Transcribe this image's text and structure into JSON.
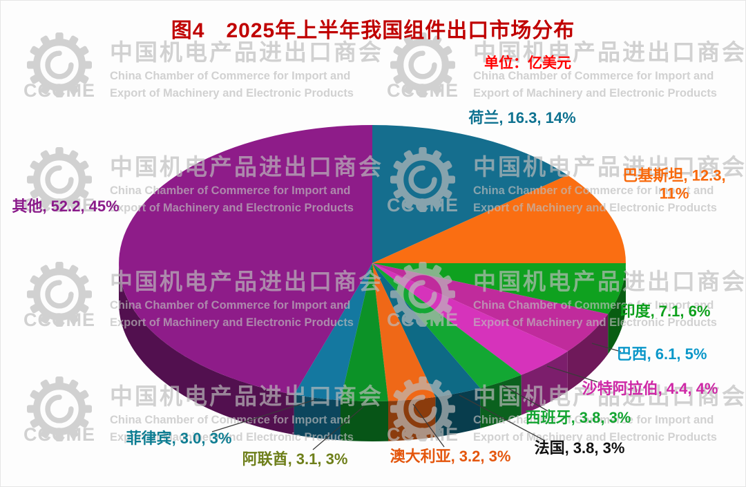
{
  "title": "图4　2025年上半年我国组件出口市场分布",
  "unit_label": "单位：亿美元",
  "watermark": {
    "logo_text": "CCCME",
    "cn": "中国机电产品进出口商会",
    "en_line1": "China Chamber of Commerce for Import and",
    "en_line2": "Export of Machinery and Electronic Products"
  },
  "chart_data": {
    "type": "pie",
    "style": "3d",
    "title": "2025年上半年我国组件出口市场分布",
    "unit": "亿美元",
    "start_angle_deg": -90,
    "direction": "clockwise",
    "label_format": "{name}, {value}, {percent}%",
    "series": [
      {
        "name": "荷兰",
        "value": 16.3,
        "value_text": "16.3",
        "percent": 14,
        "color": "#156e8e",
        "label_color": "#0e7290"
      },
      {
        "name": "巴基斯坦",
        "value": 12.3,
        "value_text": "12.3",
        "percent": 11,
        "color": "#fa6e12",
        "label_color": "#f8690b"
      },
      {
        "name": "印度",
        "value": 7.1,
        "value_text": "7.1",
        "percent": 6,
        "color": "#0fa11f",
        "label_color": "#0da01c"
      },
      {
        "name": "巴西",
        "value": 6.1,
        "value_text": "6.1",
        "percent": 5,
        "color": "#c02b9c",
        "label_color": "#0b97c9"
      },
      {
        "name": "沙特阿拉伯",
        "value": 4.4,
        "value_text": "4.4",
        "percent": 4,
        "color": "#d633bb",
        "label_color": "#ce28a6"
      },
      {
        "name": "西班牙",
        "value": 3.8,
        "value_text": "3.8",
        "percent": 3,
        "color": "#13a733",
        "label_color": "#12a430"
      },
      {
        "name": "法国",
        "value": 3.8,
        "value_text": "3.8",
        "percent": 3,
        "color": "#0e6a85",
        "label_color": "#111111"
      },
      {
        "name": "澳大利亚",
        "value": 3.2,
        "value_text": "3.2",
        "percent": 3,
        "color": "#ef6817",
        "label_color": "#e4560d"
      },
      {
        "name": "阿联酋",
        "value": 3.1,
        "value_text": "3.1",
        "percent": 3,
        "color": "#0c9227",
        "label_color": "#6e7f1a"
      },
      {
        "name": "菲律宾",
        "value": 3.0,
        "value_text": "3.0",
        "percent": 3,
        "color": "#1478a0",
        "label_color": "#0d7d92"
      },
      {
        "name": "其他",
        "value": 52.2,
        "value_text": "52.2",
        "percent": 45,
        "color": "#8e1c89",
        "label_color": "#8a1a8a"
      }
    ]
  }
}
